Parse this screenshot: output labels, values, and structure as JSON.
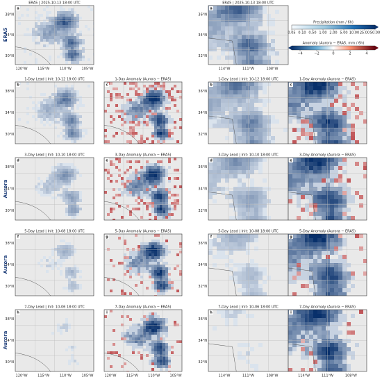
{
  "row_labels": [
    "ERA5",
    "Aurora",
    "Aurora",
    "Aurora"
  ],
  "panels": [
    {
      "letter": "a",
      "title": "ERA5  |  2025-10-13 18:00 UTC",
      "lat_ticks": [
        "38°N",
        "34°N",
        "30°N"
      ],
      "lon_ticks": [
        "120°W",
        "115°W",
        "110°W",
        "105°W"
      ]
    },
    {
      "letter": "a",
      "title": "ERA5  |  2025-10-13 18:00 UTC",
      "lat_ticks": [
        "36°N",
        "34°N",
        "32°N"
      ],
      "lon_ticks": [
        "114°W",
        "111°W",
        "108°W"
      ]
    },
    {
      "letter": "b",
      "title": "1-Day Lead  |  Init: 10-12 18:00 UTC",
      "lat_ticks": [
        "38°N",
        "34°N",
        "30°N"
      ]
    },
    {
      "letter": "c",
      "title": "1-Day Anomaly (Aurora − ERA5)"
    },
    {
      "letter": "b",
      "title": "1-Day Lead  |  Init: 10-12 18:00 UTC",
      "lat_ticks": [
        "36°N",
        "34°N",
        "32°N"
      ]
    },
    {
      "letter": "c",
      "title": "1-Day Anomaly (Aurora − ERA5)"
    },
    {
      "letter": "d",
      "title": "3-Day Lead  |  Init: 10-10 18:00 UTC",
      "lat_ticks": [
        "38°N",
        "34°N",
        "30°N"
      ]
    },
    {
      "letter": "e",
      "title": "3-Day Anomaly (Aurora − ERA5)"
    },
    {
      "letter": "d",
      "title": "3-Day Lead  |  Init: 10-10 18:00 UTC",
      "lat_ticks": [
        "36°N",
        "34°N",
        "32°N"
      ]
    },
    {
      "letter": "e",
      "title": "3-Day Anomaly (Aurora − ERA5)"
    },
    {
      "letter": "f",
      "title": "5-Day Lead  |  Init: 10-08 18:00 UTC",
      "lat_ticks": [
        "38°N",
        "34°N",
        "30°N"
      ]
    },
    {
      "letter": "g",
      "title": "5-Day Anomaly (Aurora − ERA5)"
    },
    {
      "letter": "f",
      "title": "5-Day Lead  |  Init: 10-08 18:00 UTC",
      "lat_ticks": [
        "36°N",
        "34°N",
        "32°N"
      ]
    },
    {
      "letter": "g",
      "title": "5-Day Anomaly (Aurora − ERA5)"
    },
    {
      "letter": "h",
      "title": "7-Day Lead  |  Init: 10-06 18:00 UTC",
      "lat_ticks": [
        "38°N",
        "34°N",
        "30°N"
      ],
      "lon_ticks": [
        "120°W",
        "115°W",
        "110°W",
        "105°W"
      ]
    },
    {
      "letter": "i",
      "title": "7-Day Anomaly (Aurora − ERA5)",
      "lon_ticks": [
        "120°W",
        "115°W",
        "110°W",
        "105°W"
      ]
    },
    {
      "letter": "h",
      "title": "7-Day Lead  |  Init: 10-06 18:00 UTC",
      "lat_ticks": [
        "36°N",
        "34°N",
        "32°N"
      ],
      "lon_ticks": [
        "114°W",
        "111°W",
        "108°W"
      ]
    },
    {
      "letter": "i",
      "title": "7-Day Anomaly (Aurora − ERA5)",
      "lon_ticks": [
        "114°W",
        "111°W",
        "108°W"
      ]
    }
  ],
  "colorbars": [
    {
      "title": "Precipitation (mm / 6h)",
      "ticks": [
        "0.05",
        "0.10",
        "0.50",
        "1.00",
        "2.00",
        "5.00",
        "10.00",
        "25.00",
        "50.00"
      ]
    },
    {
      "title": "Anomaly (Aurora − ERA5, mm / 6h)",
      "ticks": [
        "−4",
        "−2",
        "0",
        "2",
        "4"
      ]
    }
  ]
}
